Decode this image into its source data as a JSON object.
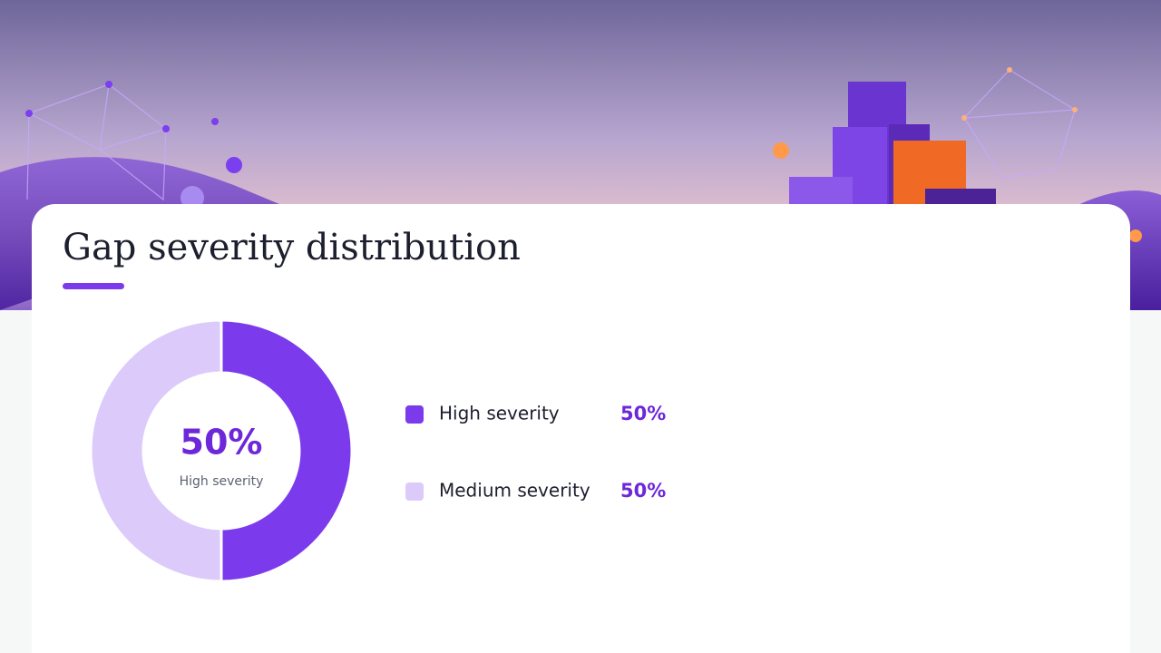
{
  "chart_data": {
    "type": "pie",
    "title": "Gap severity distribution",
    "categories": [
      "High severity",
      "Medium severity"
    ],
    "values": [
      50,
      50
    ],
    "value_labels": [
      "50%",
      "50%"
    ],
    "colors": [
      "#7c3aed",
      "#dccbfa"
    ],
    "donut": true
  }
}
